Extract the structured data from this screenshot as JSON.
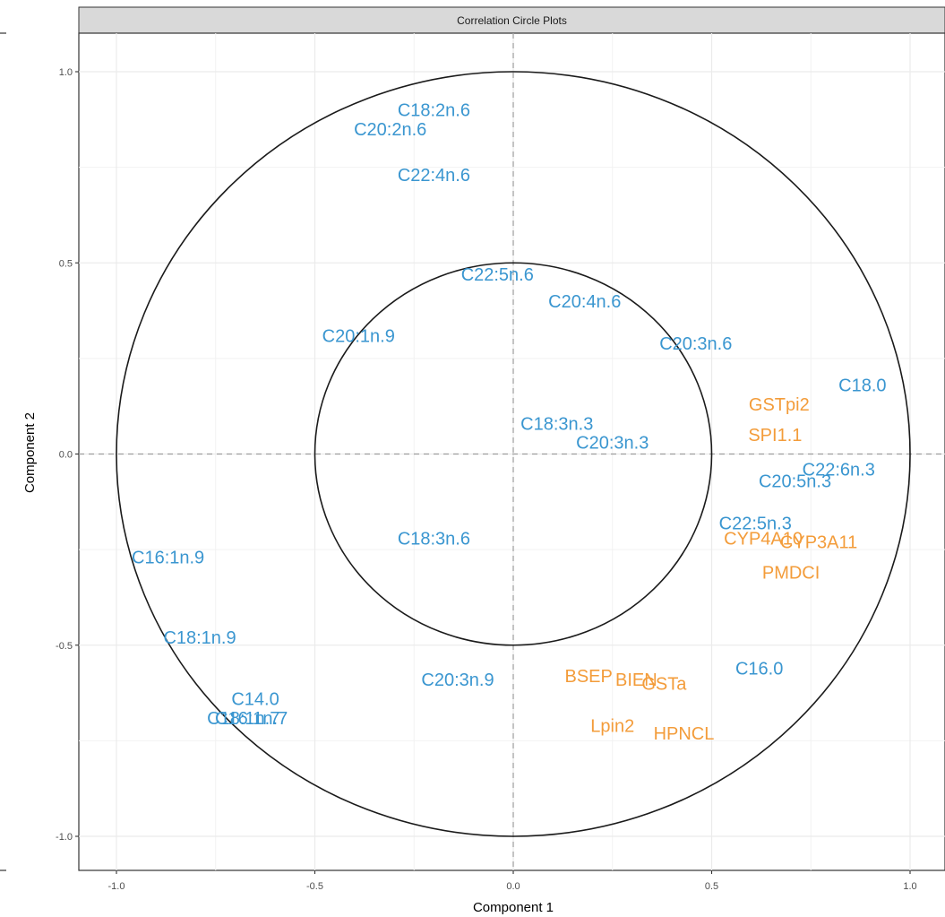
{
  "chart_data": {
    "type": "scatter",
    "title": "Correlation Circle Plots",
    "xlabel": "Component 1",
    "ylabel": "Component 2",
    "xlim": [
      -1.0,
      1.0
    ],
    "ylim": [
      -1.0,
      1.0
    ],
    "x_ticks": [
      "-1.0",
      "-0.5",
      "0.0",
      "0.5",
      "1.0"
    ],
    "y_ticks": [
      "-1.0",
      "-0.5",
      "0.0",
      "0.5",
      "1.0"
    ],
    "grid": true,
    "reference_lines": [
      {
        "axis": "x",
        "value": 0
      },
      {
        "axis": "y",
        "value": 0
      }
    ],
    "circles": [
      {
        "radius": 1.0
      },
      {
        "radius": 0.5
      }
    ],
    "colors": {
      "blue": "#3a96d0",
      "orange": "#f39c3a"
    },
    "series": [
      {
        "color": "#3a96d0",
        "points": [
          {
            "label": "C18:2n.6",
            "x": -0.2,
            "y": 0.9
          },
          {
            "label": "C20:2n.6",
            "x": -0.31,
            "y": 0.85
          },
          {
            "label": "C22:4n.6",
            "x": -0.2,
            "y": 0.73
          },
          {
            "label": "C22:5n.6",
            "x": -0.04,
            "y": 0.47
          },
          {
            "label": "C20:4n.6",
            "x": 0.18,
            "y": 0.4
          },
          {
            "label": "C20:1n.9",
            "x": -0.39,
            "y": 0.31
          },
          {
            "label": "C20:3n.6",
            "x": 0.46,
            "y": 0.29
          },
          {
            "label": "C18.0",
            "x": 0.88,
            "y": 0.18
          },
          {
            "label": "C18:3n.3",
            "x": 0.11,
            "y": 0.08
          },
          {
            "label": "C20:3n.3",
            "x": 0.25,
            "y": 0.03
          },
          {
            "label": "C22:6n.3",
            "x": 0.82,
            "y": -0.04
          },
          {
            "label": "C20:5n.3",
            "x": 0.71,
            "y": -0.07
          },
          {
            "label": "C22:5n.3",
            "x": 0.61,
            "y": -0.18
          },
          {
            "label": "C18:3n.6",
            "x": -0.2,
            "y": -0.22
          },
          {
            "label": "C16:1n.9",
            "x": -0.87,
            "y": -0.27
          },
          {
            "label": "C18:1n.9",
            "x": -0.79,
            "y": -0.48
          },
          {
            "label": "C16.0",
            "x": 0.62,
            "y": -0.56
          },
          {
            "label": "C20:3n.9",
            "x": -0.14,
            "y": -0.59
          },
          {
            "label": "C14.0",
            "x": -0.65,
            "y": -0.64
          },
          {
            "label": "C18:1n.7",
            "x": -0.68,
            "y": -0.69
          },
          {
            "label": "C16:1n.7",
            "x": -0.66,
            "y": -0.69
          }
        ]
      },
      {
        "color": "#f39c3a",
        "points": [
          {
            "label": "GSTpi2",
            "x": 0.67,
            "y": 0.13
          },
          {
            "label": "SPI1.1",
            "x": 0.66,
            "y": 0.05
          },
          {
            "label": "CYP4A10",
            "x": 0.63,
            "y": -0.22
          },
          {
            "label": "CYP3A11",
            "x": 0.77,
            "y": -0.23
          },
          {
            "label": "PMDCI",
            "x": 0.7,
            "y": -0.31
          },
          {
            "label": "BSEP",
            "x": 0.19,
            "y": -0.58
          },
          {
            "label": "BIEN",
            "x": 0.31,
            "y": -0.59
          },
          {
            "label": "GSTa",
            "x": 0.38,
            "y": -0.6
          },
          {
            "label": "Lpin2",
            "x": 0.25,
            "y": -0.71
          },
          {
            "label": "HPNCL",
            "x": 0.43,
            "y": -0.73
          }
        ]
      }
    ]
  }
}
